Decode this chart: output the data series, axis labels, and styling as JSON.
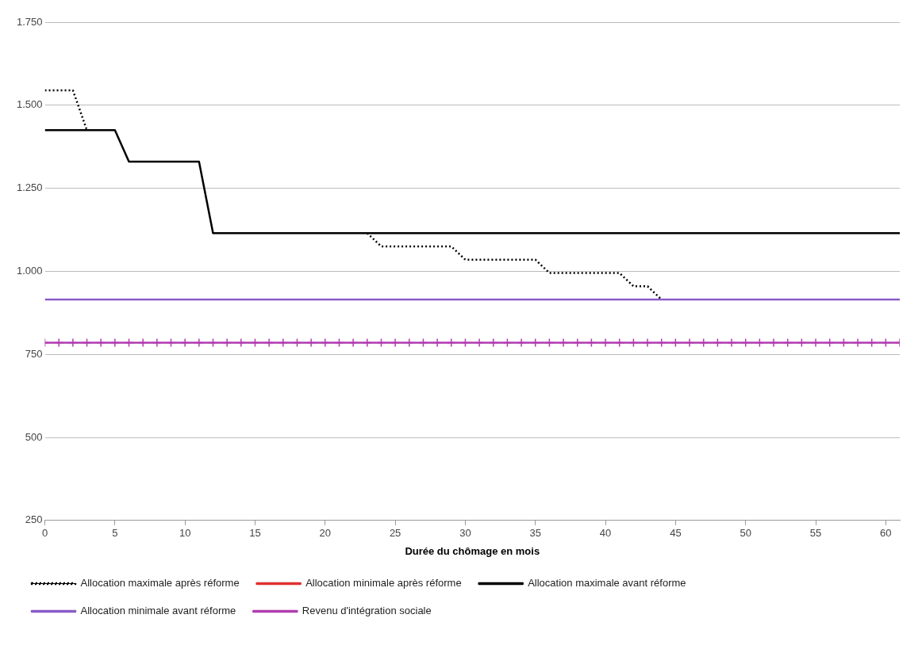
{
  "chart_data": {
    "type": "line",
    "xlabel": "Durée du chômage en mois",
    "x": [
      0,
      1,
      2,
      3,
      4,
      5,
      6,
      7,
      8,
      9,
      10,
      11,
      12,
      13,
      14,
      15,
      16,
      17,
      18,
      19,
      20,
      21,
      22,
      23,
      24,
      25,
      26,
      27,
      28,
      29,
      30,
      31,
      32,
      33,
      34,
      35,
      36,
      37,
      38,
      39,
      40,
      41,
      42,
      43,
      44,
      45,
      46,
      47,
      48,
      49,
      50,
      51,
      52,
      53,
      54,
      55,
      56,
      57,
      58,
      59,
      60,
      61
    ],
    "xlim": [
      0,
      61
    ],
    "xticks": [
      0,
      5,
      10,
      15,
      20,
      25,
      30,
      35,
      40,
      45,
      50,
      55,
      60
    ],
    "ylim": [
      250,
      1750
    ],
    "yticks": [
      250,
      500,
      750,
      {
        "value": 1000,
        "label": "1.000"
      },
      {
        "value": 1250,
        "label": "1.250"
      },
      {
        "value": 1500,
        "label": "1.500"
      },
      {
        "value": 1750,
        "label": "1.750"
      }
    ],
    "grid": "y",
    "legend": "bottom",
    "marker": "none",
    "series": [
      {
        "name": "Allocation maximale après réforme",
        "color": "#000000",
        "line_style": "dotted",
        "values": [
          1545,
          1545,
          1545,
          1425,
          null,
          null,
          null,
          null,
          null,
          null,
          null,
          null,
          null,
          null,
          null,
          null,
          null,
          null,
          null,
          null,
          null,
          null,
          null,
          1115,
          1075,
          1075,
          1075,
          1075,
          1075,
          1075,
          1035,
          1035,
          1035,
          1035,
          1035,
          1035,
          995,
          995,
          995,
          995,
          995,
          995,
          955,
          955,
          915,
          null,
          null,
          null,
          null,
          null,
          null,
          null,
          null,
          null,
          null,
          null,
          null,
          null,
          null,
          null,
          null,
          null
        ]
      },
      {
        "name": "Allocation minimale après réforme",
        "color": "#e03030",
        "values": [
          null,
          null,
          null,
          null,
          null,
          null,
          null,
          null,
          null,
          null,
          null,
          null,
          null,
          null,
          null,
          null,
          null,
          null,
          null,
          null,
          null,
          null,
          null,
          null,
          null,
          null,
          null,
          null,
          null,
          null,
          null,
          null,
          null,
          null,
          null,
          null,
          null,
          null,
          null,
          null,
          null,
          null,
          null,
          null,
          null,
          null,
          null,
          null,
          null,
          null,
          null,
          null,
          null,
          null,
          null,
          null,
          null,
          null,
          null,
          null,
          null,
          null
        ]
      },
      {
        "name": "Allocation maximale avant réforme",
        "color": "#000000",
        "values": [
          1425,
          1425,
          1425,
          1425,
          1425,
          1425,
          1330,
          1330,
          1330,
          1330,
          1330,
          1330,
          1115,
          1115,
          1115,
          1115,
          1115,
          1115,
          1115,
          1115,
          1115,
          1115,
          1115,
          1115,
          1115,
          1115,
          1115,
          1115,
          1115,
          1115,
          1115,
          1115,
          1115,
          1115,
          1115,
          1115,
          1115,
          1115,
          1115,
          1115,
          1115,
          1115,
          1115,
          1115,
          1115,
          1115,
          1115,
          1115,
          1115,
          1115,
          1115,
          1115,
          1115,
          1115,
          1115,
          1115,
          1115,
          1115,
          1115,
          1115,
          1115,
          1115
        ]
      },
      {
        "name": "Allocation minimale avant réforme",
        "color": "#8a5cc8",
        "values": [
          915,
          915,
          915,
          915,
          915,
          915,
          915,
          915,
          915,
          915,
          915,
          915,
          915,
          915,
          915,
          915,
          915,
          915,
          915,
          915,
          915,
          915,
          915,
          915,
          915,
          915,
          915,
          915,
          915,
          915,
          915,
          915,
          915,
          915,
          915,
          915,
          915,
          915,
          915,
          915,
          915,
          915,
          915,
          915,
          915,
          915,
          915,
          915,
          915,
          915,
          915,
          915,
          915,
          915,
          915,
          915,
          915,
          915,
          915,
          915,
          915,
          915
        ]
      },
      {
        "name": "Revenu d'intégration sociale",
        "color": "#b03cb0",
        "marker": "cross",
        "values": [
          785,
          785,
          785,
          785,
          785,
          785,
          785,
          785,
          785,
          785,
          785,
          785,
          785,
          785,
          785,
          785,
          785,
          785,
          785,
          785,
          785,
          785,
          785,
          785,
          785,
          785,
          785,
          785,
          785,
          785,
          785,
          785,
          785,
          785,
          785,
          785,
          785,
          785,
          785,
          785,
          785,
          785,
          785,
          785,
          785,
          785,
          785,
          785,
          785,
          785,
          785,
          785,
          785,
          785,
          785,
          785,
          785,
          785,
          785,
          785,
          785,
          785
        ]
      }
    ]
  }
}
